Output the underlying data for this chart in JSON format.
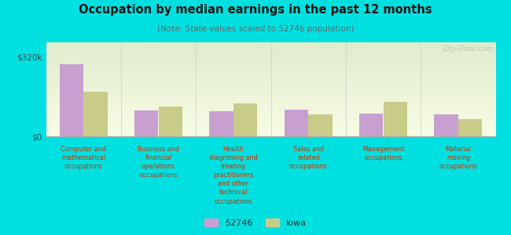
{
  "title": "Occupation by median earnings in the past 12 months",
  "subtitle": "(Note: State values scaled to 52746 population)",
  "background_color": "#00e0e0",
  "plot_bg_color": "#e8f2e0",
  "ylabel": "",
  "ytick_labels": [
    "$0",
    "$320k"
  ],
  "ytick_values": [
    0,
    320000
  ],
  "ylim": [
    0,
    380000
  ],
  "categories": [
    "Computer and\nmathematical\noccupations",
    "Business and\nfinancial\noperations\noccupations",
    "Health\ndiagnosing and\ntreating\npractitioners\nand other\ntechnical\noccupations",
    "Sales and\nrelated\noccupations",
    "Management\noccupations",
    "Material\nmoving\noccupations"
  ],
  "values_52746": [
    290000,
    105000,
    100000,
    108000,
    93000,
    88000
  ],
  "values_iowa": [
    180000,
    120000,
    132000,
    90000,
    138000,
    70000
  ],
  "color_52746": "#c8a0d0",
  "color_iowa": "#c8cc88",
  "legend_labels": [
    "52746",
    "Iowa"
  ],
  "bar_width": 0.32,
  "watermark": "City-Data.com"
}
